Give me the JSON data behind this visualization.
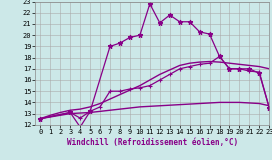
{
  "background_color": "#cce8e8",
  "grid_color": "#aaaaaa",
  "line_color": "#880088",
  "xlabel": "Windchill (Refroidissement éolien,°C)",
  "xlim": [
    -0.5,
    23
  ],
  "ylim": [
    12,
    23
  ],
  "yticks": [
    12,
    13,
    14,
    15,
    16,
    17,
    18,
    19,
    20,
    21,
    22,
    23
  ],
  "xticks": [
    0,
    1,
    2,
    3,
    4,
    5,
    6,
    7,
    8,
    9,
    10,
    11,
    12,
    13,
    14,
    15,
    16,
    17,
    18,
    19,
    20,
    21,
    22,
    23
  ],
  "lines": [
    {
      "x": [
        0,
        1,
        2,
        3,
        4,
        5,
        6,
        7,
        8,
        9,
        10,
        11,
        12,
        13,
        14,
        15,
        16,
        17,
        18,
        19,
        20,
        21,
        22,
        23
      ],
      "y": [
        12.55,
        12.7,
        12.85,
        13.0,
        13.05,
        13.1,
        13.2,
        13.3,
        13.4,
        13.5,
        13.6,
        13.65,
        13.7,
        13.75,
        13.8,
        13.85,
        13.9,
        13.95,
        14.0,
        14.0,
        14.0,
        13.95,
        13.9,
        13.7
      ],
      "marker": null,
      "linewidth": 1.0
    },
    {
      "x": [
        0,
        1,
        2,
        3,
        4,
        5,
        6,
        7,
        8,
        9,
        10,
        11,
        12,
        13,
        14,
        15,
        16,
        17,
        18,
        19,
        20,
        21,
        22,
        23
      ],
      "y": [
        12.55,
        12.85,
        13.1,
        13.3,
        13.4,
        13.6,
        13.9,
        14.3,
        14.7,
        15.1,
        15.5,
        16.0,
        16.5,
        16.9,
        17.3,
        17.5,
        17.6,
        17.65,
        17.6,
        17.5,
        17.4,
        17.3,
        17.2,
        17.0
      ],
      "marker": null,
      "linewidth": 1.0
    },
    {
      "x": [
        0,
        3,
        4,
        5,
        6,
        7,
        8,
        9,
        10,
        11,
        12,
        13,
        14,
        15,
        16,
        17,
        18,
        19,
        20,
        21,
        22,
        23
      ],
      "y": [
        12.55,
        13.1,
        12.6,
        13.2,
        13.6,
        15.0,
        15.0,
        15.2,
        15.3,
        15.5,
        16.0,
        16.5,
        17.0,
        17.2,
        17.4,
        17.5,
        18.1,
        17.0,
        17.0,
        16.8,
        16.7,
        13.5
      ],
      "marker": "+",
      "linewidth": 0.9
    },
    {
      "x": [
        0,
        3,
        4,
        5,
        7,
        8,
        9,
        10,
        11,
        12,
        13,
        14,
        15,
        16,
        17,
        18,
        19,
        20,
        21,
        22,
        23
      ],
      "y": [
        12.55,
        13.1,
        11.8,
        13.2,
        19.0,
        19.3,
        19.8,
        20.0,
        22.8,
        21.1,
        21.8,
        21.2,
        21.2,
        20.3,
        20.1,
        18.1,
        17.0,
        17.0,
        17.0,
        16.6,
        13.5
      ],
      "marker": "*",
      "linewidth": 0.9
    }
  ],
  "xlabel_fontsize": 5.5,
  "tick_fontsize": 5.0
}
